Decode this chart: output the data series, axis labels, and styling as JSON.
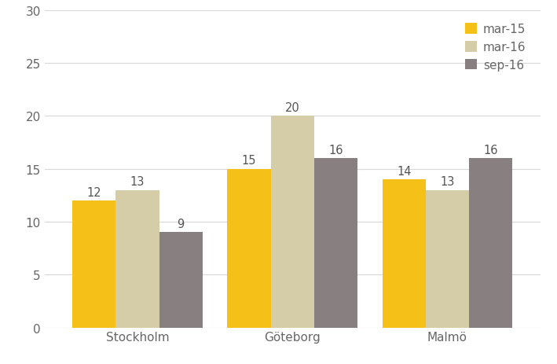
{
  "categories": [
    "Stockholm",
    "Göteborg",
    "Malmö"
  ],
  "series": [
    {
      "label": "mar-15",
      "values": [
        12,
        15,
        14
      ],
      "color": "#F5C018"
    },
    {
      "label": "mar-16",
      "values": [
        13,
        20,
        13
      ],
      "color": "#D4CDA8"
    },
    {
      "label": "sep-16",
      "values": [
        9,
        16,
        16
      ],
      "color": "#888080"
    }
  ],
  "ylim": [
    0,
    30
  ],
  "yticks": [
    0,
    5,
    10,
    15,
    20,
    25,
    30
  ],
  "bar_width": 0.28,
  "legend_loc": "upper right",
  "tick_fontsize": 11,
  "legend_fontsize": 11,
  "value_fontsize": 10.5,
  "background_color": "#ffffff",
  "grid_color": "#d8d8d8",
  "value_color": "#555555",
  "tick_color": "#666666"
}
